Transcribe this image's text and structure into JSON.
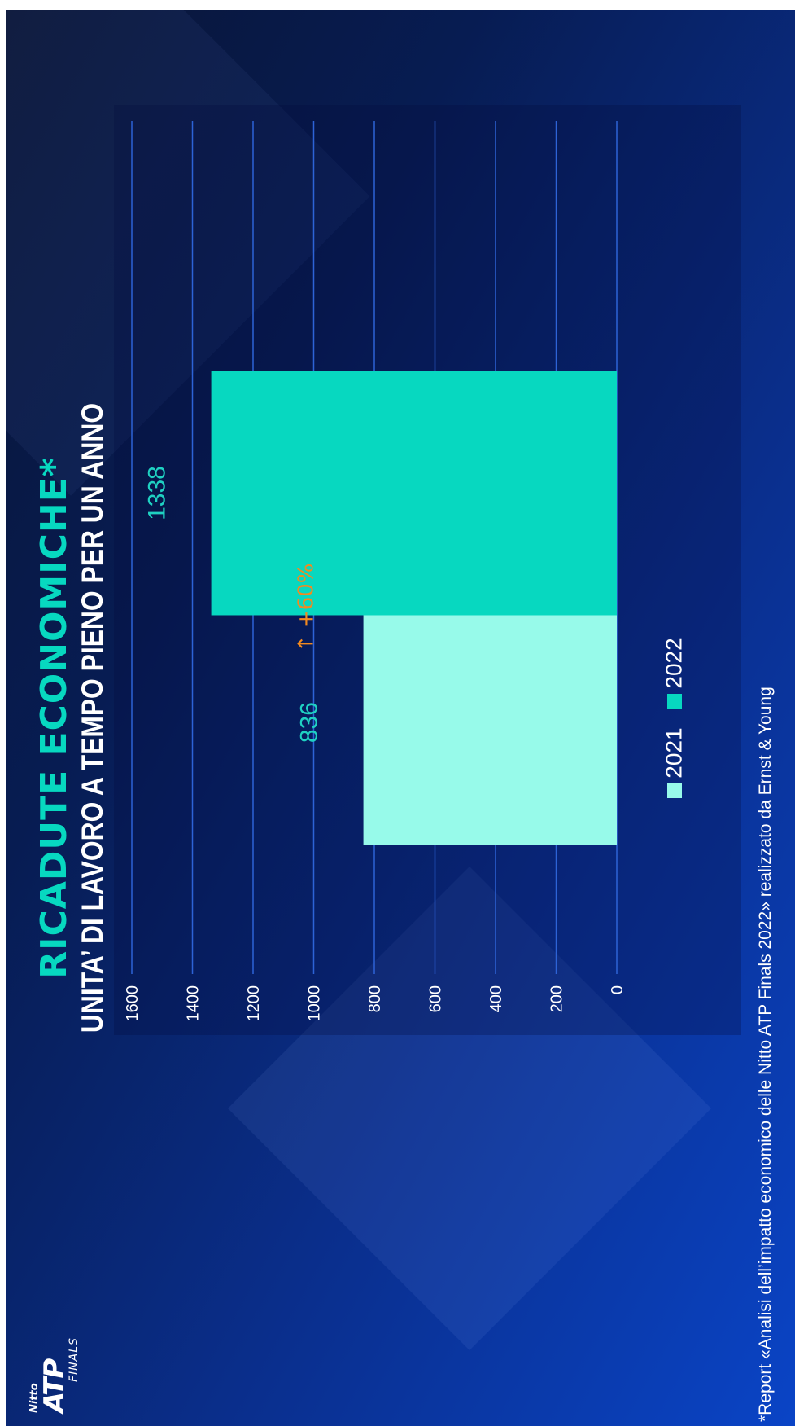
{
  "title": "RICADUTE ECONOMICHE*",
  "subtitle": "UNITA’ DI LAVORO A TEMPO PIENO PER UN ANNO",
  "logo": {
    "line1": "Nitto",
    "line2": "ATP",
    "line3": "FINALS"
  },
  "footnote": "*Report «Analisi dell’impatto economico delle Nitto ATP Finals 2022» realizzato da Ernst & Young",
  "annotation": {
    "arrow": "↑",
    "text": "+60%",
    "color": "#f28a1f"
  },
  "colors": {
    "accent": "#07d8c0",
    "series_2021": "#97faea",
    "series_2022": "#07d8c0",
    "label": "#1fd1c2",
    "grid": "#2d63d6"
  },
  "chart_data": {
    "type": "bar",
    "orientation": "vertical",
    "categories": [
      "2021",
      "2022"
    ],
    "series": [
      {
        "name": "2021",
        "values": [
          836,
          null
        ],
        "color": "#97faea"
      },
      {
        "name": "2022",
        "values": [
          null,
          1338
        ],
        "color": "#07d8c0"
      }
    ],
    "values": [
      836,
      1338
    ],
    "data_labels": [
      "836",
      "1338"
    ],
    "title": "RICADUTE ECONOMICHE*",
    "subtitle": "UNITA’ DI LAVORO A TEMPO PIENO PER UN ANNO",
    "xlabel": "",
    "ylabel": "",
    "ylim": [
      0,
      1600
    ],
    "yticks": [
      0,
      200,
      400,
      600,
      800,
      1000,
      1200,
      1400,
      1600
    ],
    "ytick_labels": [
      "0",
      "200",
      "400",
      "600",
      "800",
      "1000",
      "1200",
      "1400",
      "1600"
    ],
    "grid": true,
    "legend": {
      "position": "bottom",
      "entries": [
        "2021",
        "2022"
      ]
    },
    "annotations": [
      "↑ +60%"
    ]
  }
}
